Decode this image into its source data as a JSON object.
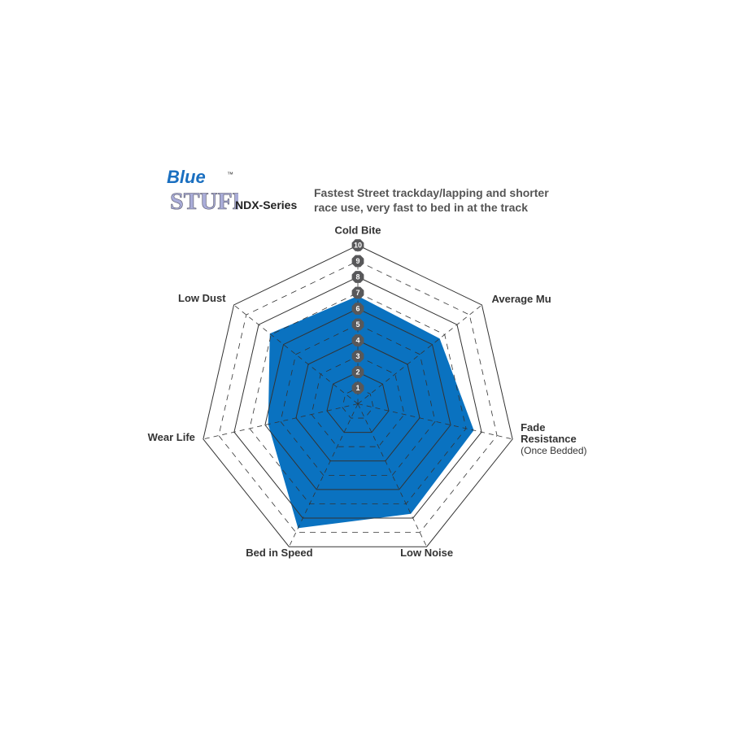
{
  "logo": {
    "text_top": "Blue",
    "text_bottom": "STUFF",
    "tm": "™"
  },
  "series_label": "NDX-Series",
  "description": [
    "Fastest Street trackday/lapping and shorter",
    "race use, very fast to bed in at the track"
  ],
  "chart_data": {
    "type": "radar",
    "axes": [
      "Cold Bite",
      "Average Mu",
      "Fade Resistance",
      "Low Noise",
      "Bed in Speed",
      "Wear Life",
      "Low Dust"
    ],
    "axis_sublabels": {
      "Fade Resistance": "(Once Bedded)"
    },
    "values": [
      6.8,
      6.6,
      7.5,
      7.7,
      8.7,
      5.8,
      7.1
    ],
    "range": [
      0,
      10
    ],
    "ticks": [
      1,
      2,
      3,
      4,
      5,
      6,
      7,
      8,
      9,
      10
    ],
    "fill_color": "#0a72c0",
    "grid_color": "#333333",
    "tick_badge_color": "#58585a"
  }
}
